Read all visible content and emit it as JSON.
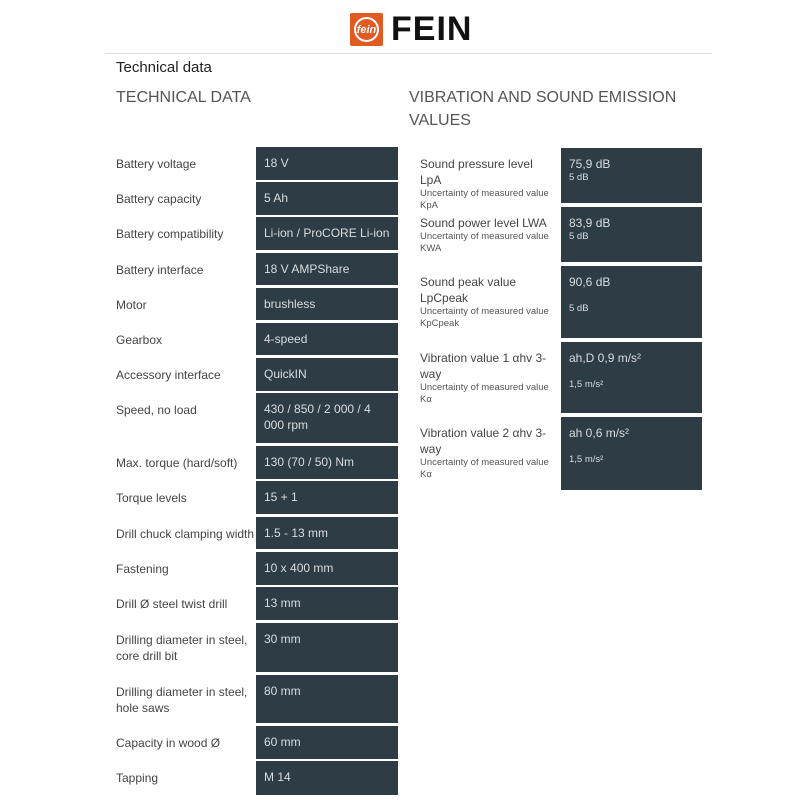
{
  "brand": {
    "name": "FEIN",
    "mark": "fein",
    "color": "#e05a22"
  },
  "page_title": "Technical data",
  "technical": {
    "heading": "TECHNICAL DATA",
    "rows": [
      {
        "label": "Battery voltage",
        "value": "18 V"
      },
      {
        "label": "Battery capacity",
        "value": "5 Ah"
      },
      {
        "label": "Battery compatibility",
        "value": "Li-ion / ProCORE Li-ion"
      },
      {
        "label": "Battery interface",
        "value": "18 V AMPShare"
      },
      {
        "label": "Motor",
        "value": "brushless"
      },
      {
        "label": "Gearbox",
        "value": "4-speed"
      },
      {
        "label": "Accessory interface",
        "value": "QuickIN"
      },
      {
        "label": "Speed, no load",
        "value": "430 / 850 / 2 000 / 4 000 rpm"
      },
      {
        "label": "Max. torque (hard/soft)",
        "value": "130 (70 / 50) Nm"
      },
      {
        "label": "Torque levels",
        "value": "15 + 1"
      },
      {
        "label": "Drill chuck clamping width",
        "value": "1.5 - 13 mm"
      },
      {
        "label": "Fastening",
        "value": "10 x 400 mm"
      },
      {
        "label": "Drill Ø steel twist drill",
        "value": "13 mm"
      },
      {
        "label": "Drilling diameter in steel, core drill bit",
        "value": "30 mm"
      },
      {
        "label": "Drilling diameter in steel, hole saws",
        "value": "80 mm"
      },
      {
        "label": "Capacity in wood Ø",
        "value": "60 mm"
      },
      {
        "label": "Tapping",
        "value": "M 14"
      }
    ]
  },
  "vibration": {
    "heading": "VIBRATION AND SOUND EMISSION VALUES",
    "rows": [
      {
        "label": "Sound pressure level LpA",
        "sub": "Uncertainty of measured value KpA",
        "value": "75,9 dB",
        "subvalue": "5 dB"
      },
      {
        "label": "Sound power level LWA",
        "sub": "Uncertainty of measured value KWA",
        "value": "83,9 dB",
        "subvalue": "5 dB"
      },
      {
        "label": "Sound peak value LpCpeak",
        "sub": "Uncertainty of measured value KpCpeak",
        "value": "90,6 dB",
        "subvalue": "5 dB"
      },
      {
        "label": "Vibration value 1 αhv 3-way",
        "sub": "Uncertainty of measured value Kα",
        "value": "ah,D 0,9 m/s²",
        "subvalue": "1,5 m/s²"
      },
      {
        "label": "Vibration value 2 αhv 3-way",
        "sub": "Uncertainty of measured value Kα",
        "value": "ah 0,6 m/s²",
        "subvalue": "1,5 m/s²"
      }
    ]
  }
}
